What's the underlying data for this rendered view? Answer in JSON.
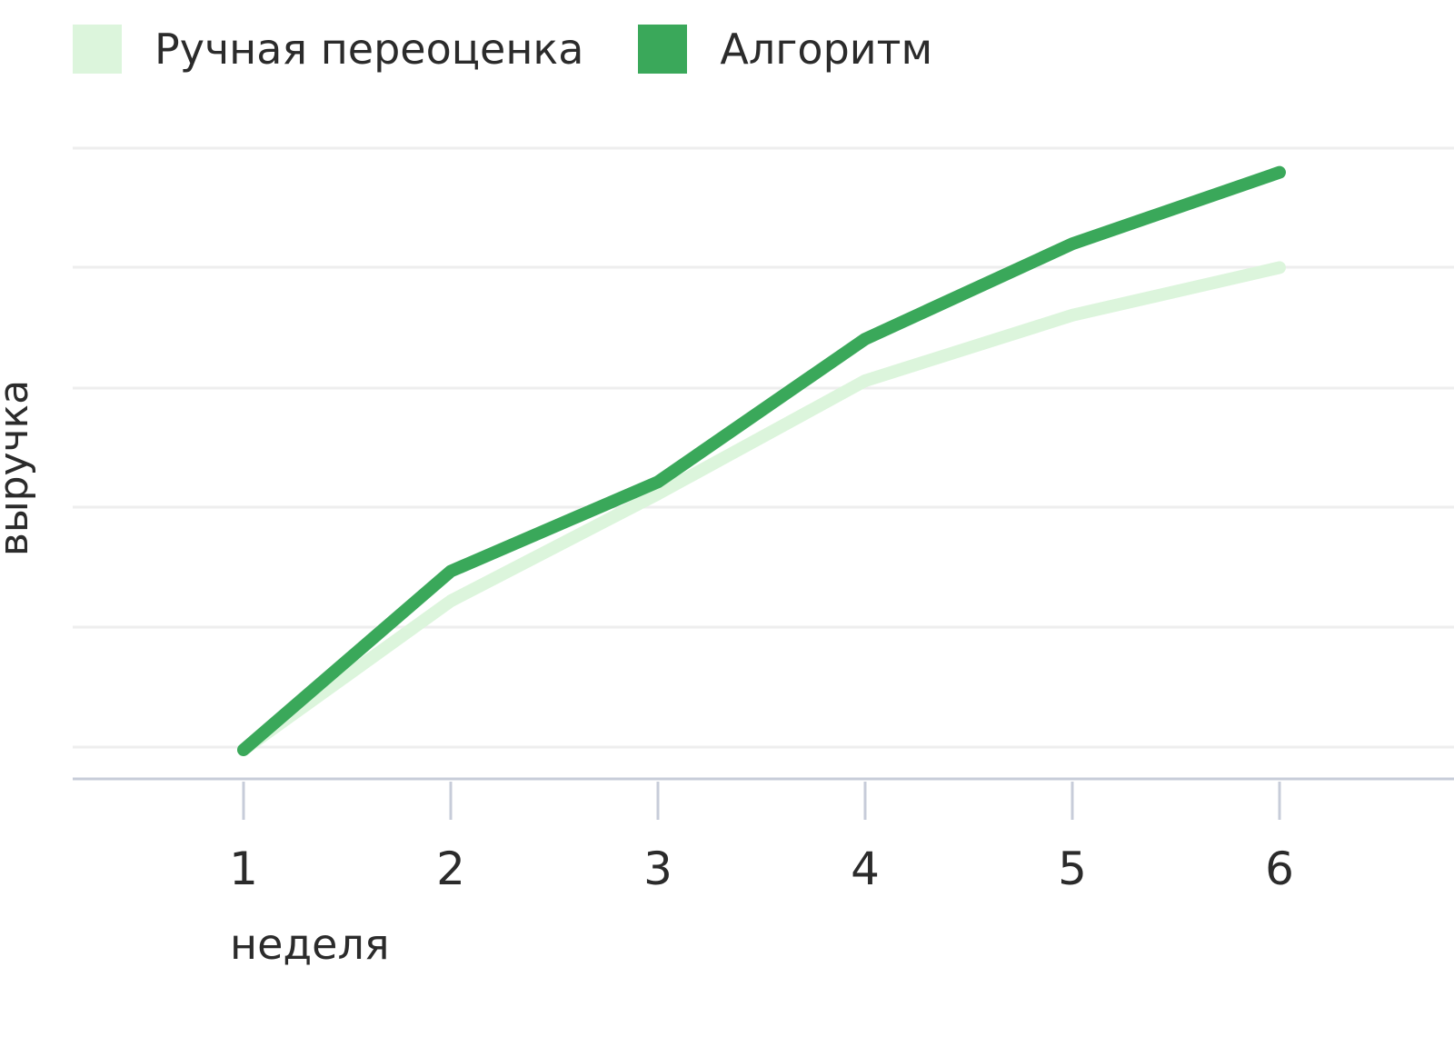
{
  "chart_data": {
    "type": "line",
    "title": "",
    "xlabel": "неделя",
    "ylabel": "выручка",
    "x": [
      1,
      2,
      3,
      4,
      5,
      6
    ],
    "categories": [
      "1",
      "2",
      "3",
      "4",
      "5",
      "6"
    ],
    "ylim": [
      0,
      100
    ],
    "grid": true,
    "legend_position": "top-left",
    "series": [
      {
        "name": "Ручная переоценка",
        "color": "#dcf5dc",
        "values": [
          0,
          25,
          43,
          62,
          73,
          81
        ]
      },
      {
        "name": "Алгоритм",
        "color": "#3aa85a",
        "values": [
          0,
          30,
          45,
          69,
          85,
          97
        ]
      }
    ]
  }
}
